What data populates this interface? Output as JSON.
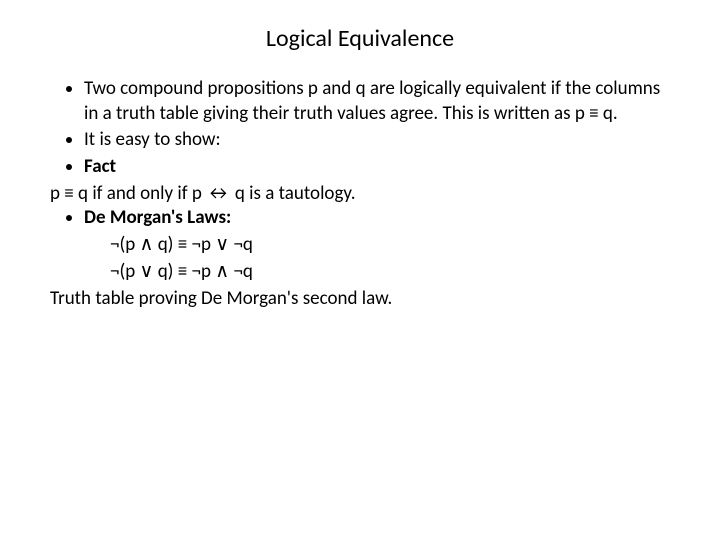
{
  "title": "Logical Equivalence",
  "body": {
    "b1": "Two compound propositions p and q are logically equivalent if the columns in a truth table giving their truth values agree. This is written as p ≡ q.",
    "b2": "It is easy to show:",
    "b3": "Fact",
    "line1": "p ≡ q if and only if p ↔ q is a tautology.",
    "b4": "De Morgan's Laws:",
    "law1": "¬(p ∧ q) ≡ ¬p ∨ ¬q",
    "law2": "¬(p ∨ q) ≡ ¬p ∧ ¬q",
    "line2": "Truth table proving De Morgan's second law."
  },
  "colors": {
    "background": "#ffffff",
    "text": "#000000"
  },
  "fonts": {
    "title_size": 24,
    "body_size": 19,
    "family": "Calibri, Arial, sans-serif"
  }
}
